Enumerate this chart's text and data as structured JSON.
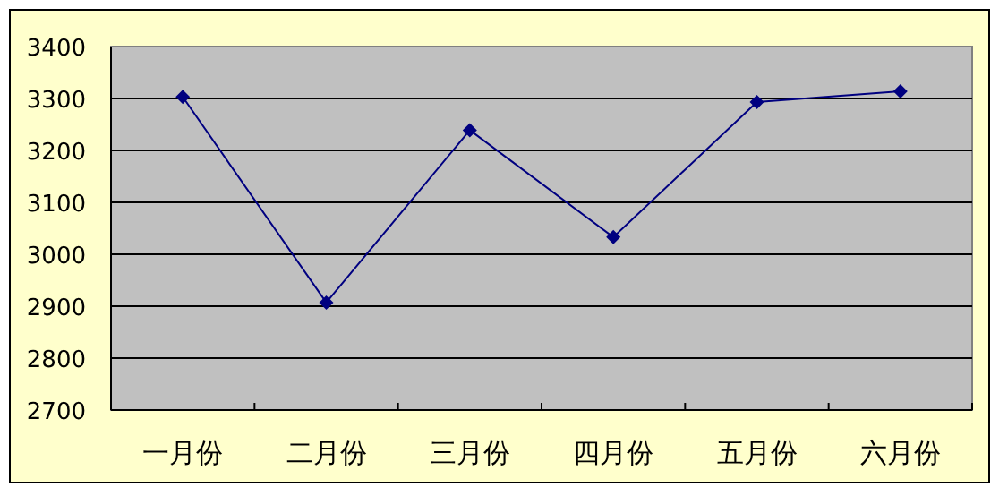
{
  "chart_data": {
    "type": "line",
    "categories": [
      "一月份",
      "二月份",
      "三月份",
      "四月份",
      "五月份",
      "六月份"
    ],
    "series": [
      {
        "color": "#000080",
        "values": [
          3303,
          2907,
          3239,
          3033,
          3293,
          3314
        ]
      }
    ],
    "ylim": [
      2700,
      3400
    ],
    "yticks": [
      2700,
      2800,
      2900,
      3000,
      3100,
      3200,
      3300,
      3400
    ],
    "grid": "y",
    "marker": "diamond",
    "line_style": "solid"
  }
}
